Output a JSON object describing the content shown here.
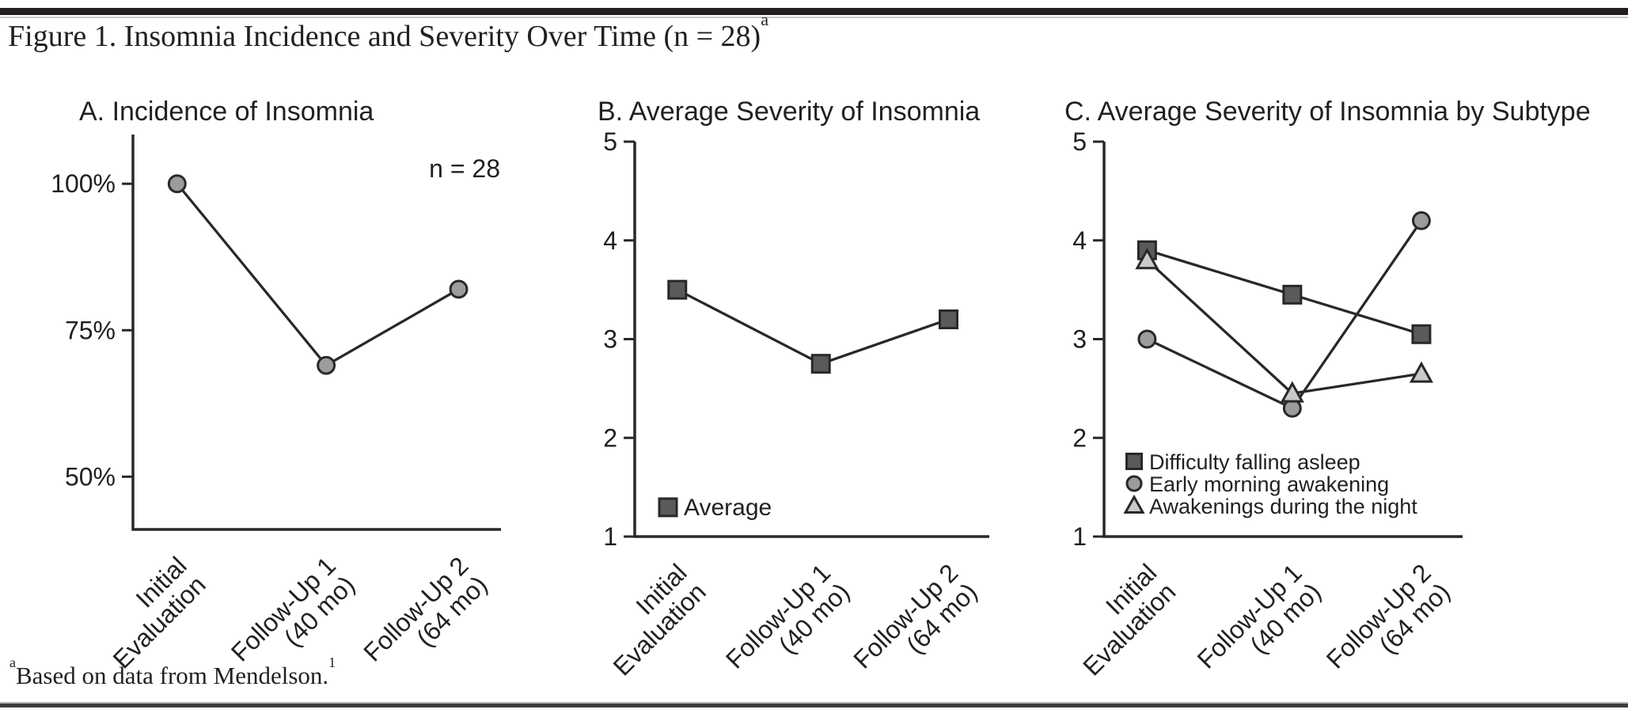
{
  "figure": {
    "title_main": "Figure 1. Insomnia Incidence and Severity Over Time (n = 28)",
    "title_sup": "a",
    "footnote_sup_lead": "a",
    "footnote_text": "Based on data from Mendelson.",
    "footnote_sup_ref": "1",
    "sample_size": "n = 28"
  },
  "colors": {
    "text": "#231f20",
    "line": "#2b2728",
    "square_fill": "#5a5a5a",
    "circle_fill": "#9c9c9c",
    "triangle_fill": "#cacaca",
    "top_bar": "#231f20",
    "rule": "#403c3d"
  },
  "chart_data": [
    {
      "id": "A",
      "type": "line",
      "title": "A. Incidence of Insomnia",
      "annotation": "n = 28",
      "categories": [
        [
          "Initial",
          "Evaluation"
        ],
        [
          "Follow-Up 1",
          "(40 mo)"
        ],
        [
          "Follow-Up 2",
          "(64 mo)"
        ]
      ],
      "y_ticks": [
        {
          "value": 100,
          "label": "100%"
        },
        {
          "value": 75,
          "label": "75%"
        },
        {
          "value": 50,
          "label": "50%"
        }
      ],
      "ylim": [
        41,
        108.4
      ],
      "grid": false,
      "legend_position": "none",
      "series": [
        {
          "name": "Incidence of insomnia",
          "marker": "circle",
          "values": [
            100,
            69,
            82
          ],
          "unit": "%"
        }
      ]
    },
    {
      "id": "B",
      "type": "line",
      "title": "B. Average Severity of Insomnia",
      "annotation": "",
      "categories": [
        [
          "Initial",
          "Evaluation"
        ],
        [
          "Follow-Up 1",
          "(40 mo)"
        ],
        [
          "Follow-Up 2",
          "(64 mo)"
        ]
      ],
      "y_ticks": [
        {
          "value": 5,
          "label": "5"
        },
        {
          "value": 4,
          "label": "4"
        },
        {
          "value": 3,
          "label": "3"
        },
        {
          "value": 2,
          "label": "2"
        },
        {
          "value": 1,
          "label": "1"
        }
      ],
      "ylim": [
        1,
        5
      ],
      "grid": false,
      "legend_position": "inside-bottom-left",
      "series": [
        {
          "name": "Average",
          "marker": "square",
          "values": [
            3.5,
            2.75,
            3.2
          ]
        }
      ]
    },
    {
      "id": "C",
      "type": "line",
      "title": "C. Average Severity of Insomnia by Subtype",
      "annotation": "",
      "categories": [
        [
          "Initial",
          "Evaluation"
        ],
        [
          "Follow-Up 1",
          "(40 mo)"
        ],
        [
          "Follow-Up 2",
          "(64 mo)"
        ]
      ],
      "y_ticks": [
        {
          "value": 5,
          "label": "5"
        },
        {
          "value": 4,
          "label": "4"
        },
        {
          "value": 3,
          "label": "3"
        },
        {
          "value": 2,
          "label": "2"
        },
        {
          "value": 1,
          "label": "1"
        }
      ],
      "ylim": [
        1,
        5
      ],
      "grid": false,
      "legend_position": "inside-bottom-left",
      "series": [
        {
          "name": "Difficulty falling asleep",
          "marker": "square",
          "values": [
            3.9,
            3.45,
            3.05
          ]
        },
        {
          "name": "Early morning awakening",
          "marker": "circle",
          "values": [
            3.0,
            2.3,
            4.2
          ]
        },
        {
          "name": "Awakenings during the night",
          "marker": "triangle",
          "values": [
            3.8,
            2.45,
            2.65
          ]
        }
      ]
    }
  ]
}
